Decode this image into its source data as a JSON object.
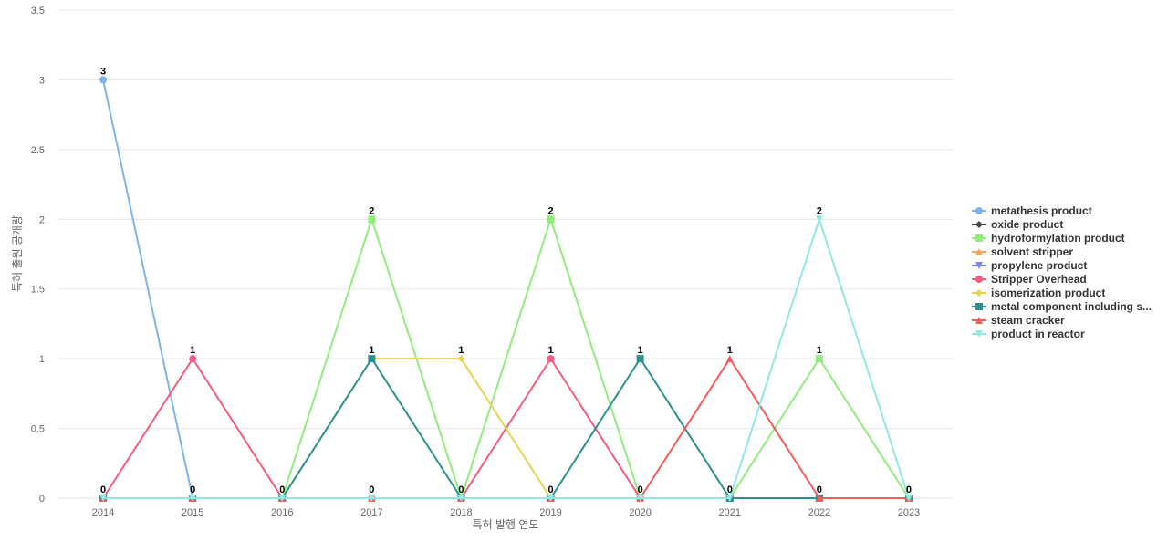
{
  "chart_data": {
    "type": "line",
    "x_label": "특허 발행 연도",
    "y_label": "특허 출원 공개량",
    "categories": [
      "2014",
      "2015",
      "2016",
      "2017",
      "2018",
      "2019",
      "2020",
      "2021",
      "2022",
      "2023"
    ],
    "ylim": [
      0,
      3.5
    ],
    "yticks": [
      0,
      0.5,
      1,
      1.5,
      2,
      2.5,
      3,
      3.5
    ],
    "grid": true,
    "legend": "right",
    "series": [
      {
        "name": "metathesis product",
        "color": "#7cb5ec",
        "values": [
          3,
          0,
          0,
          0,
          0,
          0,
          0,
          0,
          0,
          0
        ]
      },
      {
        "name": "oxide product",
        "color": "#434348",
        "values": [
          0,
          0,
          0,
          0,
          0,
          0,
          0,
          0,
          0,
          0
        ]
      },
      {
        "name": "hydroformylation product",
        "color": "#90ed7d",
        "values": [
          0,
          0,
          0,
          2,
          0,
          2,
          0,
          0,
          1,
          0
        ]
      },
      {
        "name": "solvent stripper",
        "color": "#f7a35c",
        "values": [
          0,
          0,
          0,
          0,
          0,
          0,
          0,
          0,
          0,
          0
        ]
      },
      {
        "name": "propylene product",
        "color": "#8085e9",
        "values": [
          0,
          0,
          0,
          0,
          0,
          0,
          0,
          0,
          0,
          0
        ]
      },
      {
        "name": "Stripper Overhead",
        "color": "#f15c80",
        "values": [
          0,
          1,
          0,
          0,
          0,
          1,
          0,
          0,
          0,
          0
        ]
      },
      {
        "name": "isomerization product",
        "color": "#e4d354",
        "values": [
          0,
          0,
          0,
          1,
          1,
          0,
          0,
          0,
          0,
          0
        ]
      },
      {
        "name": "metal component including s...",
        "color": "#2b908f",
        "values": [
          0,
          0,
          0,
          1,
          0,
          0,
          1,
          0,
          0,
          0
        ]
      },
      {
        "name": "steam cracker",
        "color": "#f45b5b",
        "values": [
          0,
          0,
          0,
          0,
          0,
          0,
          0,
          1,
          0,
          0
        ]
      },
      {
        "name": "product in reactor",
        "color": "#91e8e1",
        "values": [
          0,
          0,
          0,
          0,
          0,
          0,
          0,
          0,
          2,
          0
        ]
      }
    ]
  }
}
